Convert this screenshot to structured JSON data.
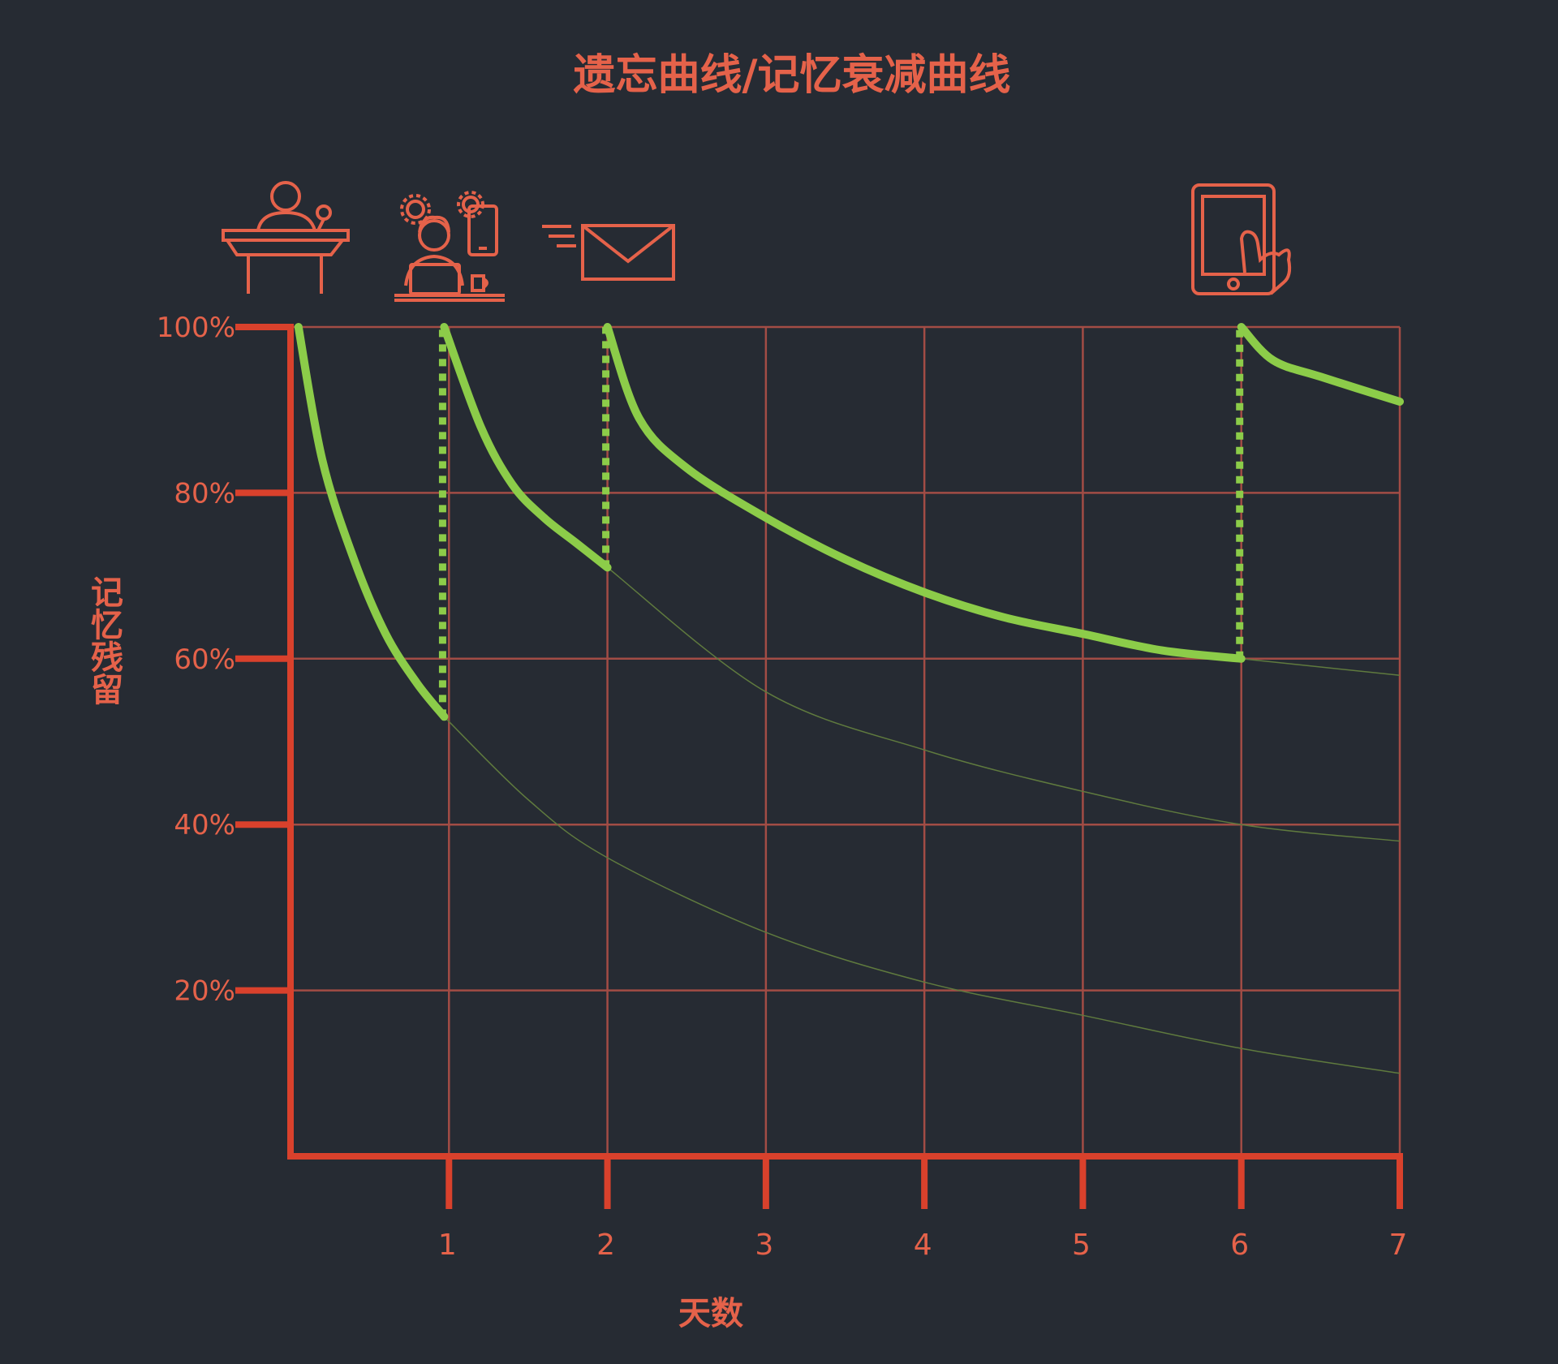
{
  "colors": {
    "background": "#262b33",
    "accent": "#e5624a",
    "axis": "#d9412c",
    "grid": "#a24c45",
    "curve": "#8ccc49",
    "faded_curve": "#5f7a3e"
  },
  "icons": [
    "lecture-podium-icon",
    "person-working-laptop-icon",
    "email-icon",
    "tablet-touch-icon"
  ],
  "chart_data": {
    "type": "line",
    "title": "遗忘曲线/记忆衰减曲线",
    "xlabel": "天数",
    "ylabel": "记忆残留",
    "xlim": [
      0,
      7
    ],
    "ylim": [
      0,
      100
    ],
    "x_ticks": [
      "1",
      "2",
      "3",
      "4",
      "5",
      "6",
      "7"
    ],
    "y_ticks": [
      "20%",
      "40%",
      "60%",
      "80%",
      "100%"
    ],
    "y_tick_values": [
      20,
      40,
      60,
      80,
      100
    ],
    "grid": true,
    "series": [
      {
        "role": "highlighted",
        "segments": [
          {
            "x": [
              0.05,
              0.2,
              0.4,
              0.6,
              0.8,
              0.97
            ],
            "y": [
              100,
              84,
              72,
              63,
              57,
              53
            ]
          },
          {
            "x": [
              0.97,
              1.2,
              1.4,
              1.6,
              1.8,
              2.0
            ],
            "y": [
              100,
              88,
              81,
              77,
              74,
              71
            ]
          },
          {
            "x": [
              2.0,
              2.2,
              2.5,
              3.0,
              3.5,
              4.0,
              4.5,
              5.0,
              5.5,
              6.0
            ],
            "y": [
              100,
              89,
              83,
              77,
              72,
              68,
              65,
              63,
              61,
              60
            ]
          },
          {
            "x": [
              6.0,
              6.2,
              6.5,
              7.0
            ],
            "y": [
              100,
              96,
              94,
              91
            ]
          }
        ],
        "reviews": [
          {
            "x": 0.97,
            "from": 53,
            "to": 100
          },
          {
            "x": 2.0,
            "from": 71,
            "to": 100
          },
          {
            "x": 6.0,
            "from": 60,
            "to": 100
          }
        ]
      },
      {
        "role": "faded",
        "segments": [
          {
            "x": [
              0.97,
              1.5,
              2.0,
              3.0,
              4.0,
              5.0,
              6.0,
              7.0
            ],
            "y": [
              53,
              43,
              36,
              27,
              21,
              17,
              13,
              10
            ]
          },
          {
            "x": [
              2.0,
              3.0,
              4.0,
              5.0,
              6.0,
              7.0
            ],
            "y": [
              71,
              56,
              49,
              44,
              40,
              38
            ]
          },
          {
            "x": [
              6.0,
              7.0
            ],
            "y": [
              60,
              58
            ]
          }
        ]
      }
    ]
  }
}
